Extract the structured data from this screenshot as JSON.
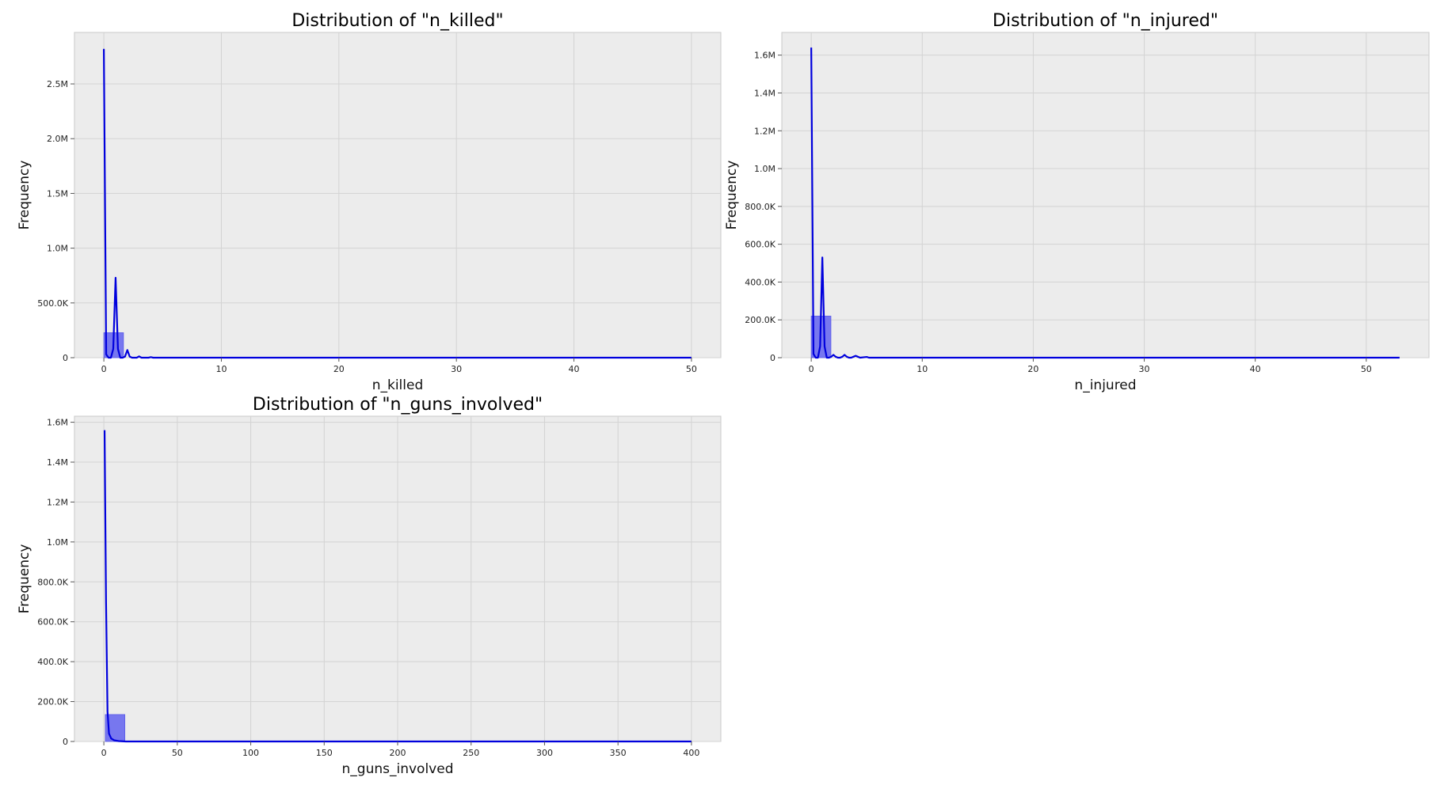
{
  "chart_data": [
    {
      "type": "bar",
      "title": "Distribution of \"n_killed\"",
      "xlabel": "n_killed",
      "ylabel": "Frequency",
      "xlim": [
        -2.5,
        52.5
      ],
      "ylim": [
        0,
        2970000
      ],
      "xticks": [
        0,
        10,
        20,
        30,
        40,
        50
      ],
      "xtick_labels": [
        "0",
        "10",
        "20",
        "30",
        "40",
        "50"
      ],
      "yticks": [
        0,
        500000,
        1000000,
        1500000,
        2000000,
        2500000
      ],
      "ytick_labels": [
        "0",
        "500.0K",
        "1.0M",
        "1.5M",
        "2.0M",
        "2.5M"
      ],
      "grid": true,
      "bars": [
        {
          "x0": 0,
          "x1": 1.67,
          "value": 228000
        }
      ],
      "kde_line": {
        "x": [
          0,
          0.2,
          0.4,
          0.6,
          0.8,
          1.0,
          1.2,
          1.4,
          1.6,
          1.8,
          2.0,
          2.2,
          2.4,
          2.6,
          2.8,
          3.0,
          3.2,
          3.4,
          3.6,
          3.8,
          4.0,
          4.2,
          50
        ],
        "y": [
          2820000,
          30000,
          0,
          0,
          80000,
          730000,
          80000,
          0,
          0,
          10000,
          70000,
          10000,
          0,
          0,
          0,
          12000,
          0,
          0,
          0,
          0,
          5000,
          0,
          0
        ]
      }
    },
    {
      "type": "bar",
      "title": "Distribution of \"n_injured\"",
      "xlabel": "n_injured",
      "ylabel": "Frequency",
      "xlim": [
        -2.65,
        55.65
      ],
      "ylim": [
        0,
        1720000
      ],
      "xticks": [
        0,
        10,
        20,
        30,
        40,
        50
      ],
      "xtick_labels": [
        "0",
        "10",
        "20",
        "30",
        "40",
        "50"
      ],
      "yticks": [
        0,
        200000,
        400000,
        600000,
        800000,
        1000000,
        1200000,
        1400000,
        1600000
      ],
      "ytick_labels": [
        "0",
        "200.0K",
        "400.0K",
        "600.0K",
        "800.0K",
        "1.0M",
        "1.2M",
        "1.4M",
        "1.6M"
      ],
      "grid": true,
      "bars": [
        {
          "x0": 0,
          "x1": 1.77,
          "value": 220000
        }
      ],
      "kde_line": {
        "x": [
          0,
          0.2,
          0.4,
          0.6,
          0.8,
          1.0,
          1.2,
          1.4,
          1.6,
          1.8,
          2.0,
          2.2,
          2.4,
          2.6,
          2.8,
          3.0,
          3.2,
          3.4,
          3.6,
          3.8,
          4.0,
          4.2,
          4.4,
          5.0,
          5.2,
          53
        ],
        "y": [
          1640000,
          20000,
          0,
          0,
          60000,
          530000,
          60000,
          0,
          0,
          5000,
          15000,
          5000,
          0,
          0,
          5000,
          15000,
          5000,
          0,
          0,
          5000,
          10000,
          5000,
          0,
          4000,
          0,
          0
        ]
      }
    },
    {
      "type": "bar",
      "title": "Distribution of \"n_guns_involved\"",
      "xlabel": "n_guns_involved",
      "ylabel": "Frequency",
      "xlim": [
        -20,
        420
      ],
      "ylim": [
        0,
        1630000
      ],
      "xticks": [
        0,
        50,
        100,
        150,
        200,
        250,
        300,
        350,
        400
      ],
      "xtick_labels": [
        "0",
        "50",
        "100",
        "150",
        "200",
        "250",
        "300",
        "350",
        "400"
      ],
      "yticks": [
        0,
        200000,
        400000,
        600000,
        800000,
        1000000,
        1200000,
        1400000,
        1600000
      ],
      "ytick_labels": [
        "0",
        "200.0K",
        "400.0K",
        "600.0K",
        "800.0K",
        "1.0M",
        "1.2M",
        "1.4M",
        "1.6M"
      ],
      "grid": true,
      "bars": [
        {
          "x0": 1,
          "x1": 14.3,
          "value": 135000
        }
      ],
      "kde_line": {
        "x": [
          0.5,
          1.5,
          2.5,
          3.5,
          5,
          7,
          10,
          15,
          400
        ],
        "y": [
          1560000,
          700000,
          150000,
          40000,
          15000,
          6000,
          2000,
          0,
          0
        ]
      }
    }
  ],
  "colors": {
    "axes_bg": "#ececec",
    "axes_edge": "#c8c8c8",
    "grid": "#d3d3d3",
    "bar": "#6a6af0",
    "line": "#0000dd"
  }
}
